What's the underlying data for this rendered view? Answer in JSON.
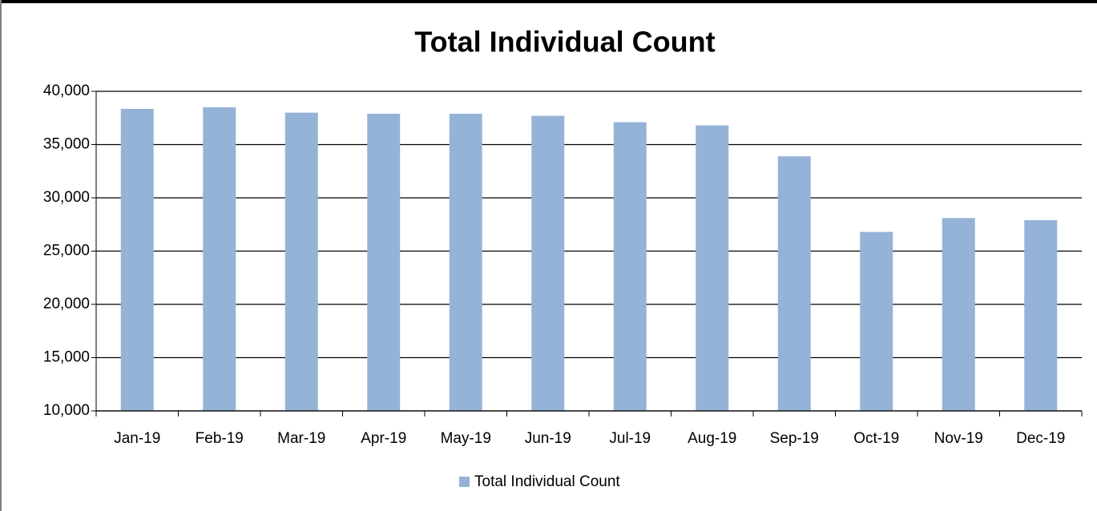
{
  "chart_data": {
    "type": "bar",
    "title": "Total Individual Count",
    "categories": [
      "Jan-19",
      "Feb-19",
      "Mar-19",
      "Apr-19",
      "May-19",
      "Jun-19",
      "Jul-19",
      "Aug-19",
      "Sep-19",
      "Oct-19",
      "Nov-19",
      "Dec-19"
    ],
    "series": [
      {
        "name": "Total Individual Count",
        "color": "#95b3d7",
        "values": [
          38350,
          38500,
          38000,
          37900,
          37900,
          37700,
          37100,
          36800,
          33900,
          26800,
          28100,
          27900
        ]
      }
    ],
    "ylim": [
      10000,
      40000
    ],
    "yticks": [
      {
        "value": 10000,
        "label": "10,000"
      },
      {
        "value": 15000,
        "label": "15,000"
      },
      {
        "value": 20000,
        "label": "20,000"
      },
      {
        "value": 25000,
        "label": "25,000"
      },
      {
        "value": 30000,
        "label": "30,000"
      },
      {
        "value": 35000,
        "label": "35,000"
      },
      {
        "value": 40000,
        "label": "40,000"
      }
    ],
    "grid": true,
    "legend": "bottom"
  }
}
